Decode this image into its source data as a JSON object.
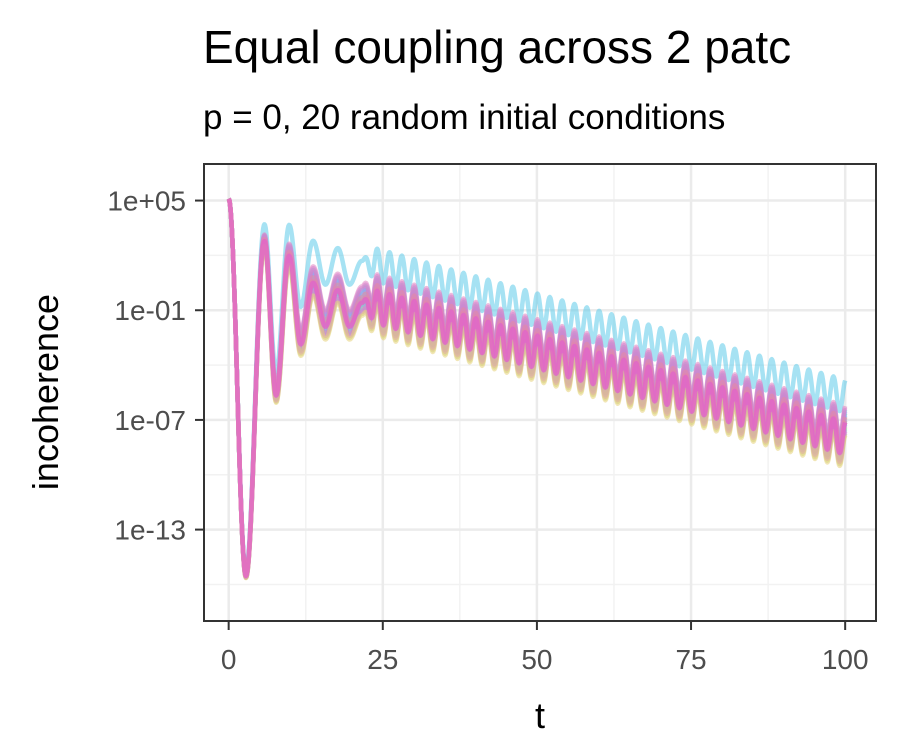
{
  "chart_data": {
    "type": "line",
    "title": "Equal coupling across 2 patc",
    "subtitle": "p = 0, 20 random initial conditions",
    "xlabel": "t",
    "ylabel": "incoherence",
    "x_ticks": [
      0,
      25,
      50,
      75,
      100
    ],
    "x_tick_labels": [
      "0",
      "25",
      "50",
      "75",
      "100"
    ],
    "y_ticks": [
      100000.0,
      0.1,
      1e-07,
      1e-13
    ],
    "y_tick_labels": [
      "1e+05",
      "1e-01",
      "1e-07",
      "1e-13"
    ],
    "xlim": [
      -4,
      105
    ],
    "ylim": [
      1e-18,
      10000000.0
    ],
    "y_scale": "log",
    "grid": true,
    "legend": "none",
    "series_count": 20,
    "series": [
      {
        "color": "#eec68f",
        "offset_log10": 0.0
      },
      {
        "color": "#e0d37a",
        "offset_log10": -0.5
      },
      {
        "color": "#c9d67a",
        "offset_log10": -0.9
      },
      {
        "color": "#a9d878",
        "offset_log10": -0.3
      },
      {
        "color": "#86d98c",
        "offset_log10": -0.6
      },
      {
        "color": "#6fd9a6",
        "offset_log10": 0.2
      },
      {
        "color": "#5ed8c1",
        "offset_log10": -0.2
      },
      {
        "color": "#58d4d8",
        "offset_log10": 0.4
      },
      {
        "color": "#5ccbe9",
        "offset_log10": 2.0
      },
      {
        "color": "#6bbdf2",
        "offset_log10": -0.4
      },
      {
        "color": "#80aef5",
        "offset_log10": 0.1
      },
      {
        "color": "#959ff3",
        "offset_log10": -0.1
      },
      {
        "color": "#a993ee",
        "offset_log10": 0.3
      },
      {
        "color": "#bb8ae6",
        "offset_log10": -0.7
      },
      {
        "color": "#ca83dc",
        "offset_log10": 0.5
      },
      {
        "color": "#d77fcf",
        "offset_log10": -0.8
      },
      {
        "color": "#e07fc1",
        "offset_log10": 0.6
      },
      {
        "color": "#e582b1",
        "offset_log10": -0.2
      },
      {
        "color": "#e888a0",
        "offset_log10": 0.0
      },
      {
        "color": "#e6d27a",
        "offset_log10": -1.0
      }
    ],
    "curve_points": [
      {
        "t": 0,
        "log10": 5.1
      },
      {
        "t": 2.8,
        "log10": -15.5
      },
      {
        "t": 5.8,
        "log10": 2.9
      },
      {
        "t": 7.7,
        "log10": -5.5
      },
      {
        "t": 9.8,
        "log10": 2.2
      },
      {
        "t": 11.7,
        "log10": -2.6
      },
      {
        "t": 13.7,
        "log10": 0.8
      },
      {
        "t": 15.7,
        "log10": -1.6
      },
      {
        "t": 17.7,
        "log10": 0.4
      },
      {
        "t": 19.6,
        "log10": -1.6
      },
      {
        "t": 21.6,
        "log10": -0.3
      },
      {
        "t": 100,
        "log10": -7.7
      }
    ],
    "oscillation": {
      "period": 2.0,
      "amplitude_log10": 0.9
    },
    "highlight_series": {
      "color": "#e066c8",
      "offset_log10": -0.3
    }
  }
}
